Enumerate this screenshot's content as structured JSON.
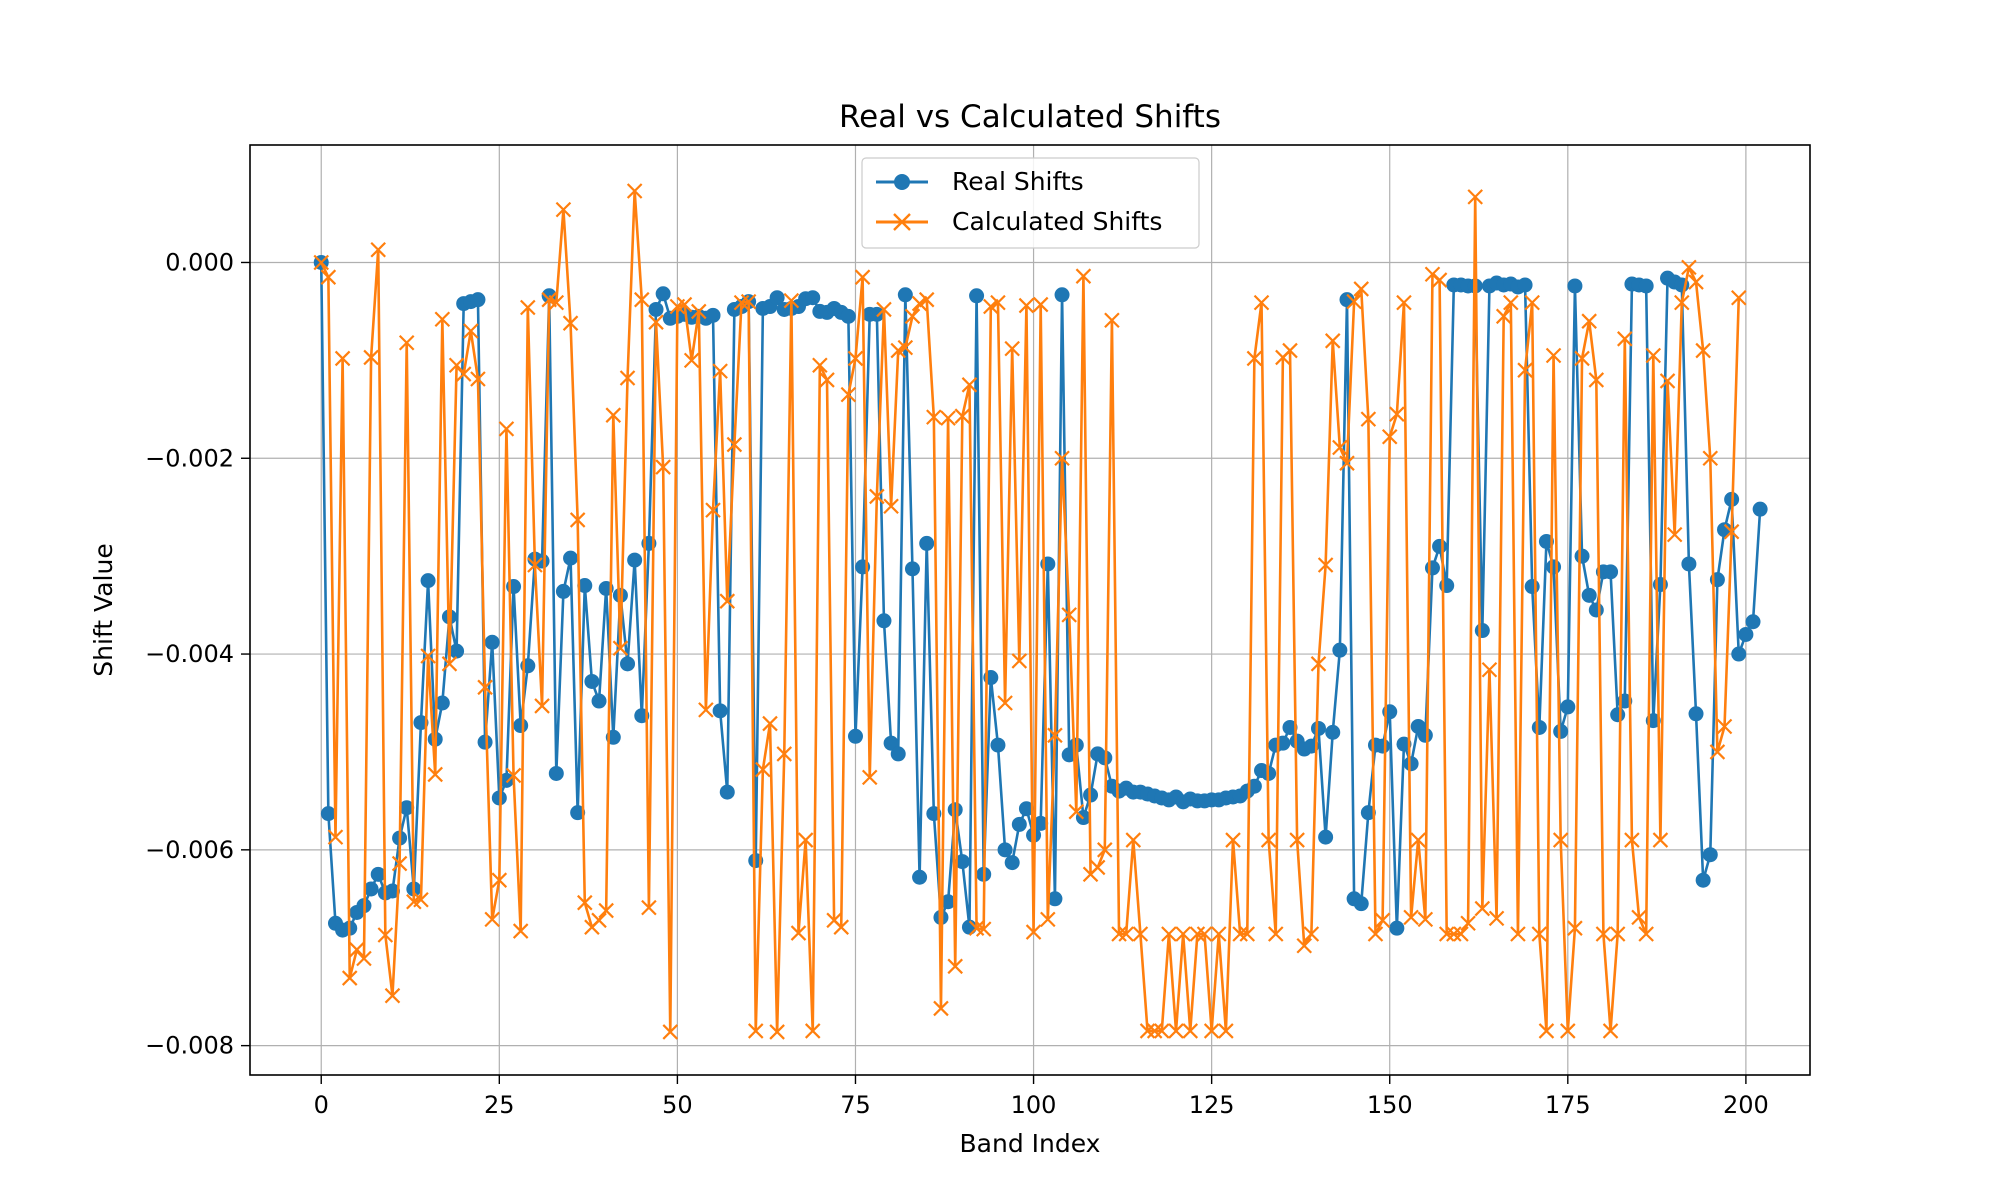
{
  "chart_data": {
    "type": "line",
    "title": "Real vs Calculated Shifts",
    "xlabel": "Band Index",
    "ylabel": "Shift Value",
    "xlim": [
      -10,
      209
    ],
    "ylim": [
      -0.0083,
      0.0012
    ],
    "xticks": [
      0,
      25,
      50,
      75,
      100,
      125,
      150,
      175,
      200
    ],
    "xtick_labels": [
      "0",
      "25",
      "50",
      "75",
      "100",
      "125",
      "150",
      "175",
      "200"
    ],
    "yticks": [
      0.0,
      -0.002,
      -0.004,
      -0.006,
      -0.008
    ],
    "ytick_labels": [
      "0.000",
      "−0.002",
      "−0.004",
      "−0.006",
      "−0.008"
    ],
    "grid": true,
    "legend_position": "upper center",
    "series": [
      {
        "name": "Real Shifts",
        "color": "#1f77b4",
        "marker": "circle",
        "values": [
          0.0,
          -0.00563,
          -0.00675,
          -0.00682,
          -0.0068,
          -0.00664,
          -0.00657,
          -0.0064,
          -0.00625,
          -0.00644,
          -0.00642,
          -0.00588,
          -0.00557,
          -0.0064,
          -0.0047,
          -0.00325,
          -0.00487,
          -0.0045,
          -0.00362,
          -0.00397,
          -0.00042,
          -0.0004,
          -0.00038,
          -0.0049,
          -0.00388,
          -0.00547,
          -0.00529,
          -0.00331,
          -0.00473,
          -0.00412,
          -0.00303,
          -0.00305,
          -0.00034,
          -0.00522,
          -0.00336,
          -0.00302,
          -0.00562,
          -0.0033,
          -0.00428,
          -0.00448,
          -0.00333,
          -0.00485,
          -0.0034,
          -0.0041,
          -0.00304,
          -0.00463,
          -0.00287,
          -0.00048,
          -0.00032,
          -0.00057,
          -0.00055,
          -0.00053,
          -0.00056,
          -0.00055,
          -0.00057,
          -0.00054,
          -0.00458,
          -0.00541,
          -0.00048,
          -0.00045,
          -0.0004,
          -0.00611,
          -0.00047,
          -0.00045,
          -0.00036,
          -0.00048,
          -0.00047,
          -0.00045,
          -0.00037,
          -0.00036,
          -0.0005,
          -0.00051,
          -0.00047,
          -0.00051,
          -0.00055,
          -0.00484,
          -0.00311,
          -0.00053,
          -0.00053,
          -0.00366,
          -0.00491,
          -0.00502,
          -0.00033,
          -0.00313,
          -0.00628,
          -0.00287,
          -0.00563,
          -0.00669,
          -0.00653,
          -0.00559,
          -0.00612,
          -0.00679,
          -0.00034,
          -0.00625,
          -0.00424,
          -0.00493,
          -0.006,
          -0.00613,
          -0.00574,
          -0.00558,
          -0.00585,
          -0.00573,
          -0.00308,
          -0.0065,
          -0.00033,
          -0.00503,
          -0.00493,
          -0.00567,
          -0.00544,
          -0.00502,
          -0.00506,
          -0.00535,
          -0.0054,
          -0.00537,
          -0.00541,
          -0.00541,
          -0.00543,
          -0.00545,
          -0.00547,
          -0.00549,
          -0.00546,
          -0.00551,
          -0.00548,
          -0.0055,
          -0.0055,
          -0.00549,
          -0.00549,
          -0.00547,
          -0.00546,
          -0.00545,
          -0.0054,
          -0.00535,
          -0.00519,
          -0.00522,
          -0.00493,
          -0.00491,
          -0.00475,
          -0.00489,
          -0.00497,
          -0.00494,
          -0.00476,
          -0.00587,
          -0.0048,
          -0.00396,
          -0.00038,
          -0.0065,
          -0.00655,
          -0.00562,
          -0.00493,
          -0.00494,
          -0.00459,
          -0.0068,
          -0.00492,
          -0.00512,
          -0.00474,
          -0.00483,
          -0.00312,
          -0.0029,
          -0.0033,
          -0.00023,
          -0.00023,
          -0.00024,
          -0.00024,
          -0.00376,
          -0.00024,
          -0.00021,
          -0.00023,
          -0.00022,
          -0.00025,
          -0.00023,
          -0.00331,
          -0.00475,
          -0.00285,
          -0.00311,
          -0.00479,
          -0.00454,
          -0.00024,
          -0.003,
          -0.0034,
          -0.00355,
          -0.00316,
          -0.00316,
          -0.00462,
          -0.00448,
          -0.00022,
          -0.00023,
          -0.00024,
          -0.00468,
          -0.00329,
          -0.00016,
          -0.0002,
          -0.00023,
          -0.00308,
          -0.00461,
          -0.00631,
          -0.00605,
          -0.00324,
          -0.00273,
          -0.00242,
          -0.004,
          -0.0038,
          -0.00367,
          -0.00252
        ]
      },
      {
        "name": "Calculated Shifts",
        "color": "#ff7f0e",
        "marker": "x",
        "values": [
          0.0,
          -0.00015,
          -0.00587,
          -0.00098,
          -0.00731,
          -0.00702,
          -0.00711,
          -0.00097,
          0.00013,
          -0.00687,
          -0.00749,
          -0.00614,
          -0.00082,
          -0.00653,
          -0.00651,
          -0.00402,
          -0.00523,
          -0.00058,
          -0.0041,
          -0.00105,
          -0.00114,
          -0.0007,
          -0.00119,
          -0.00434,
          -0.00671,
          -0.00631,
          -0.0017,
          -0.00524,
          -0.00683,
          -0.00046,
          -0.00309,
          -0.00453,
          -0.00038,
          -0.00041,
          0.00054,
          -0.00062,
          -0.00263,
          -0.00654,
          -0.00679,
          -0.00672,
          -0.00662,
          -0.00156,
          -0.00394,
          -0.00118,
          0.00073,
          -0.00038,
          -0.00659,
          -0.00061,
          -0.00209,
          -0.00786,
          -0.00045,
          -0.00043,
          -0.001,
          -0.0005,
          -0.00457,
          -0.00253,
          -0.00111,
          -0.00346,
          -0.00186,
          -0.00041,
          -0.0004,
          -0.00785,
          -0.00518,
          -0.00471,
          -0.00786,
          -0.00502,
          -0.00039,
          -0.00685,
          -0.0059,
          -0.00785,
          -0.00105,
          -0.0012,
          -0.00672,
          -0.00679,
          -0.00135,
          -0.00098,
          -0.00015,
          -0.00526,
          -0.00239,
          -0.00048,
          -0.00249,
          -0.0009,
          -0.00087,
          -0.00055,
          -0.00042,
          -0.00038,
          -0.00158,
          -0.00762,
          -0.00159,
          -0.00719,
          -0.00157,
          -0.00125,
          -0.0068,
          -0.00681,
          -0.00045,
          -0.00041,
          -0.0045,
          -0.00088,
          -0.00407,
          -0.00044,
          -0.00684,
          -0.00043,
          -0.00671,
          -0.00483,
          -0.002,
          -0.0036,
          -0.00561,
          -0.00014,
          -0.00625,
          -0.00618,
          -0.006,
          -0.00059,
          -0.00686,
          -0.00686,
          -0.0059,
          -0.00686,
          -0.00785,
          -0.00785,
          -0.00785,
          -0.00686,
          -0.00785,
          -0.00686,
          -0.00785,
          -0.00686,
          -0.00686,
          -0.00785,
          -0.00686,
          -0.00785,
          -0.0059,
          -0.00686,
          -0.00686,
          -0.00098,
          -0.00041,
          -0.0059,
          -0.00686,
          -0.00097,
          -0.0009,
          -0.0059,
          -0.00698,
          -0.00686,
          -0.0041,
          -0.00309,
          -0.0008,
          -0.00189,
          -0.00205,
          -0.0004,
          -0.00027,
          -0.0016,
          -0.00686,
          -0.00672,
          -0.00178,
          -0.00155,
          -0.00041,
          -0.00669,
          -0.0059,
          -0.00671,
          -0.00012,
          -0.00018,
          -0.00686,
          -0.00686,
          -0.00686,
          -0.00675,
          0.00067,
          -0.0066,
          -0.00416,
          -0.0067,
          -0.00055,
          -0.00041,
          -0.00686,
          -0.0011,
          -0.00041,
          -0.00686,
          -0.00785,
          -0.00095,
          -0.0059,
          -0.00785,
          -0.0068,
          -0.00098,
          -0.0006,
          -0.0012,
          -0.00686,
          -0.00785,
          -0.00686,
          -0.00078,
          -0.0059,
          -0.00669,
          -0.00686,
          -0.00095,
          -0.0059,
          -0.00121,
          -0.00278,
          -0.00041,
          -5e-05,
          -0.0002,
          -0.0009,
          -0.002,
          -0.005,
          -0.00474,
          -0.00275,
          -0.00036
        ]
      }
    ]
  }
}
